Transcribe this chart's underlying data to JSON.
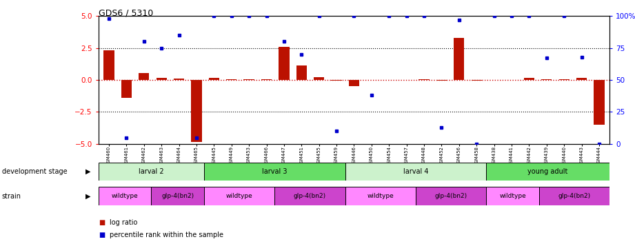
{
  "title": "GDS6 / 5310",
  "samples": [
    "GSM460",
    "GSM461",
    "GSM462",
    "GSM463",
    "GSM464",
    "GSM465",
    "GSM445",
    "GSM449",
    "GSM453",
    "GSM466",
    "GSM447",
    "GSM451",
    "GSM455",
    "GSM459",
    "GSM446",
    "GSM450",
    "GSM454",
    "GSM457",
    "GSM448",
    "GSM452",
    "GSM456",
    "GSM458",
    "GSM438",
    "GSM441",
    "GSM442",
    "GSM439",
    "GSM440",
    "GSM443",
    "GSM444"
  ],
  "log_ratio": [
    2.3,
    -1.4,
    0.55,
    0.15,
    0.1,
    -4.85,
    0.18,
    0.05,
    0.05,
    0.05,
    2.6,
    1.15,
    0.22,
    -0.05,
    -0.5,
    0.02,
    0.02,
    0.02,
    0.05,
    -0.05,
    3.3,
    -0.05,
    0.02,
    0.02,
    0.18,
    0.05,
    0.05,
    0.15,
    -3.5
  ],
  "percentile": [
    98,
    5,
    80,
    75,
    85,
    5,
    100,
    100,
    100,
    100,
    80,
    70,
    100,
    10,
    100,
    38,
    100,
    100,
    100,
    13,
    97,
    0,
    100,
    100,
    100,
    67,
    100,
    68,
    0
  ],
  "dev_stages": [
    {
      "label": "larval 2",
      "start": 0,
      "end": 6,
      "color": "#ccf2cc"
    },
    {
      "label": "larval 3",
      "start": 6,
      "end": 14,
      "color": "#66dd66"
    },
    {
      "label": "larval 4",
      "start": 14,
      "end": 22,
      "color": "#ccf2cc"
    },
    {
      "label": "young adult",
      "start": 22,
      "end": 29,
      "color": "#66dd66"
    }
  ],
  "strains": [
    {
      "label": "wildtype",
      "start": 0,
      "end": 3,
      "color": "#ff88ff"
    },
    {
      "label": "glp-4(bn2)",
      "start": 3,
      "end": 6,
      "color": "#cc44cc"
    },
    {
      "label": "wildtype",
      "start": 6,
      "end": 10,
      "color": "#ff88ff"
    },
    {
      "label": "glp-4(bn2)",
      "start": 10,
      "end": 14,
      "color": "#cc44cc"
    },
    {
      "label": "wildtype",
      "start": 14,
      "end": 18,
      "color": "#ff88ff"
    },
    {
      "label": "glp-4(bn2)",
      "start": 18,
      "end": 22,
      "color": "#cc44cc"
    },
    {
      "label": "wildtype",
      "start": 22,
      "end": 25,
      "color": "#ff88ff"
    },
    {
      "label": "glp-4(bn2)",
      "start": 25,
      "end": 29,
      "color": "#cc44cc"
    }
  ],
  "ylim_left": [
    -5,
    5
  ],
  "ylim_right": [
    0,
    100
  ],
  "yticks_left": [
    -5,
    -2.5,
    0,
    2.5,
    5
  ],
  "yticks_right": [
    0,
    25,
    50,
    75,
    100
  ],
  "ytick_labels_right": [
    "0",
    "25",
    "50",
    "75",
    "100%"
  ],
  "bar_color": "#bb1100",
  "dot_color": "#0000cc",
  "n_samples": 29
}
